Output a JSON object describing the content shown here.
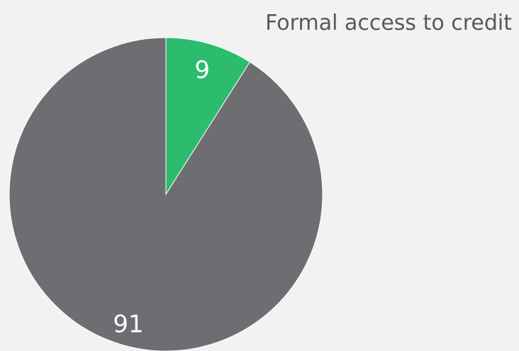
{
  "chart_data": {
    "type": "pie",
    "legend": "Formal access to credit",
    "slices": [
      {
        "label": "9",
        "value": 9,
        "color": "#2dbb6e"
      },
      {
        "label": "91",
        "value": 91,
        "color": "#6d6e71"
      }
    ],
    "start_angle_deg": 0,
    "direction": "clockwise"
  }
}
